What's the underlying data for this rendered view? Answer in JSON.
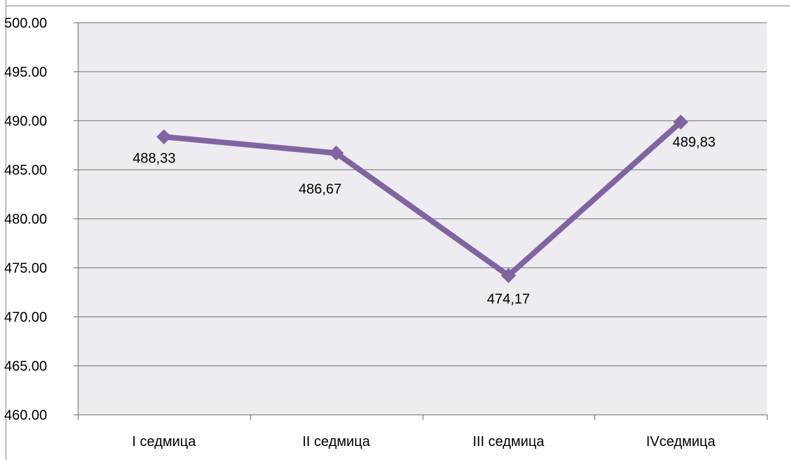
{
  "chart_data": {
    "type": "line",
    "categories": [
      "I седмица",
      "II седмица",
      "III седмица",
      "IVседмица"
    ],
    "series": [
      {
        "values": [
          488.33,
          486.67,
          474.17,
          489.83
        ],
        "data_labels": [
          "488,33",
          "486,67",
          "474,17",
          "489,83"
        ],
        "color": "#8064A2",
        "marker": "diamond"
      }
    ],
    "ylim": [
      460,
      500
    ],
    "ytick_step": 5,
    "ytick_labels": [
      "460.00",
      "465.00",
      "470.00",
      "475.00",
      "480.00",
      "485.00",
      "490.00",
      "495.00",
      "500.00"
    ],
    "grid": true,
    "legend": "none",
    "plot_background": "#EEECF1",
    "gridline_color": "#868686"
  }
}
